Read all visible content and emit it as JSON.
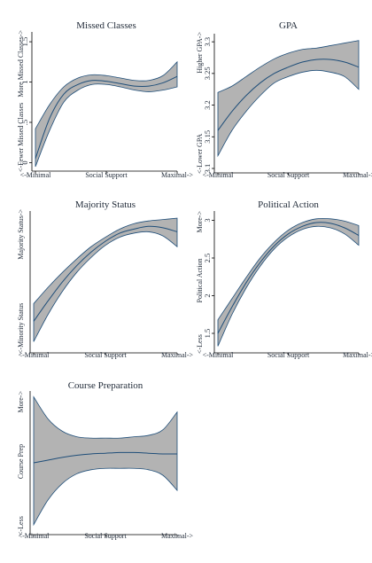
{
  "colors": {
    "band": "#b3b3b3",
    "line": "#1f4e79",
    "axis": "#000000",
    "text": "#1f2937"
  },
  "chart_data": [
    {
      "type": "line",
      "title": "Missed Classes",
      "x_ticks": [
        "<-Minimal",
        "Social Support",
        "Maximal->"
      ],
      "y_label_low": "<-Fewer Missed Classes",
      "y_label_high": "More Missed Classes->",
      "y_ticks": [
        "0",
        ".5",
        "1",
        "1.5"
      ],
      "y_tick_values": [
        0,
        0.5,
        1,
        1.5
      ],
      "ylim": [
        -0.05,
        1.6
      ],
      "x": [
        0,
        0.1,
        0.2,
        0.3,
        0.4,
        0.5,
        0.6,
        0.7,
        0.8,
        0.9,
        1.0
      ],
      "series": [
        {
          "values": [
            0.05,
            0.55,
            0.85,
            0.97,
            1.02,
            1.01,
            0.98,
            0.95,
            0.95,
            0.99,
            1.07
          ]
        }
      ],
      "lower": [
        -0.05,
        0.4,
        0.75,
        0.9,
        0.97,
        0.97,
        0.94,
        0.9,
        0.88,
        0.9,
        0.94
      ],
      "upper": [
        0.42,
        0.72,
        0.94,
        1.05,
        1.09,
        1.08,
        1.05,
        1.02,
        1.02,
        1.08,
        1.25
      ]
    },
    {
      "type": "line",
      "title": "GPA",
      "x_ticks": [
        "<-Minimal",
        "Social Support",
        "Maximal->"
      ],
      "y_label_low": "<-Lower GPA",
      "y_label_high": "Higher GPA->",
      "y_ticks": [
        "3.1",
        "3.15",
        "3.2",
        "3.25",
        "3.3"
      ],
      "y_tick_values": [
        3.1,
        3.15,
        3.2,
        3.25,
        3.3
      ],
      "ylim": [
        3.1,
        3.31
      ],
      "x": [
        0,
        0.1,
        0.2,
        0.3,
        0.4,
        0.5,
        0.6,
        0.7,
        0.8,
        0.9,
        1.0
      ],
      "series": [
        {
          "values": [
            3.16,
            3.19,
            3.215,
            3.235,
            3.25,
            3.26,
            3.268,
            3.272,
            3.272,
            3.268,
            3.26
          ]
        }
      ],
      "lower": [
        3.12,
        3.16,
        3.19,
        3.215,
        3.235,
        3.245,
        3.252,
        3.255,
        3.252,
        3.245,
        3.225
      ],
      "upper": [
        3.22,
        3.23,
        3.245,
        3.26,
        3.273,
        3.282,
        3.288,
        3.29,
        3.294,
        3.298,
        3.302
      ]
    },
    {
      "type": "line",
      "title": "Majority Status",
      "x_ticks": [
        "<-Minimal",
        "Social Support",
        "Maximal->"
      ],
      "y_label_low": "<-Minority Status",
      "y_label_high": "Majority Status->",
      "y_ticks": [],
      "y_tick_values": [],
      "ylim": [
        0,
        1
      ],
      "x": [
        0,
        0.1,
        0.2,
        0.3,
        0.4,
        0.5,
        0.6,
        0.7,
        0.8,
        0.9,
        1.0
      ],
      "series": [
        {
          "values": [
            0.2,
            0.35,
            0.49,
            0.61,
            0.71,
            0.79,
            0.85,
            0.88,
            0.9,
            0.89,
            0.86
          ]
        }
      ],
      "lower": [
        0.05,
        0.25,
        0.42,
        0.56,
        0.67,
        0.76,
        0.82,
        0.85,
        0.86,
        0.83,
        0.75
      ],
      "upper": [
        0.33,
        0.45,
        0.56,
        0.66,
        0.75,
        0.82,
        0.88,
        0.92,
        0.94,
        0.95,
        0.96
      ]
    },
    {
      "type": "line",
      "title": "Political Action",
      "x_ticks": [
        "<-Minimal",
        "Social Support",
        "Maximal->"
      ],
      "y_label_low": "<-Less",
      "y_label_high": "More->",
      "y_label_mid": "Political Action",
      "y_ticks": [
        "1.5",
        "2",
        "2.5",
        "3"
      ],
      "y_tick_values": [
        1.5,
        2,
        2.5,
        3
      ],
      "ylim": [
        1.3,
        3.1
      ],
      "x": [
        0,
        0.1,
        0.2,
        0.3,
        0.4,
        0.5,
        0.6,
        0.7,
        0.8,
        0.9,
        1.0
      ],
      "series": [
        {
          "values": [
            1.5,
            1.85,
            2.17,
            2.44,
            2.66,
            2.82,
            2.92,
            2.97,
            2.96,
            2.9,
            2.8
          ]
        }
      ],
      "lower": [
        1.33,
        1.75,
        2.1,
        2.39,
        2.62,
        2.78,
        2.88,
        2.92,
        2.9,
        2.82,
        2.67
      ],
      "upper": [
        1.68,
        1.96,
        2.24,
        2.5,
        2.71,
        2.87,
        2.97,
        3.02,
        3.02,
        2.99,
        2.93
      ]
    },
    {
      "type": "line",
      "title": "Course Preparation",
      "x_ticks": [
        "<-Minimal",
        "Social Support",
        "Maximal->"
      ],
      "y_label_low": "<-Less",
      "y_label_high": "More->",
      "y_label_mid": "Course Prep",
      "y_ticks": [],
      "y_tick_values": [],
      "ylim": [
        0,
        1
      ],
      "x": [
        0,
        0.1,
        0.2,
        0.3,
        0.4,
        0.5,
        0.6,
        0.7,
        0.8,
        0.9,
        1.0
      ],
      "series": [
        {
          "values": [
            0.49,
            0.51,
            0.53,
            0.545,
            0.555,
            0.56,
            0.565,
            0.565,
            0.56,
            0.555,
            0.555
          ]
        }
      ],
      "lower": [
        0.04,
        0.22,
        0.34,
        0.41,
        0.44,
        0.45,
        0.45,
        0.45,
        0.44,
        0.4,
        0.29
      ],
      "upper": [
        0.97,
        0.81,
        0.72,
        0.68,
        0.67,
        0.67,
        0.67,
        0.68,
        0.69,
        0.73,
        0.86
      ]
    }
  ]
}
